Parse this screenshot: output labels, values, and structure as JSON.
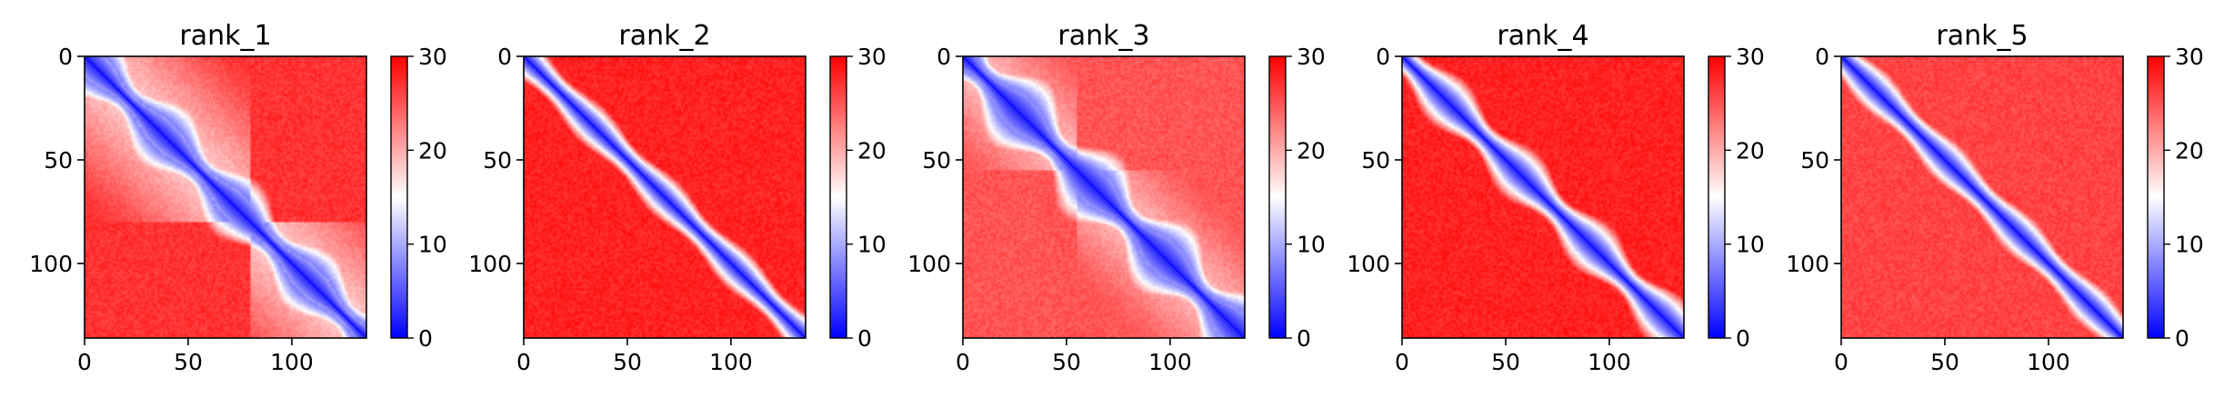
{
  "chart_data": [
    {
      "type": "heatmap",
      "title": "rank_1",
      "matrix_size": 136,
      "x_ticks": [
        0,
        50,
        100
      ],
      "y_ticks": [
        0,
        50,
        100
      ],
      "colorbar": {
        "min": 0,
        "max": 30,
        "ticks": [
          0,
          10,
          20,
          30
        ],
        "colormap": "bwr"
      },
      "pattern": {
        "diag_width": 7,
        "diag_wobble": 3,
        "blocks": [
          [
            0,
            80
          ],
          [
            80,
            136
          ]
        ],
        "block_value": 16,
        "background": 27
      }
    },
    {
      "type": "heatmap",
      "title": "rank_2",
      "matrix_size": 136,
      "x_ticks": [
        0,
        50,
        100
      ],
      "y_ticks": [
        0,
        50,
        100
      ],
      "colorbar": {
        "min": 0,
        "max": 30,
        "ticks": [
          0,
          10,
          20,
          30
        ],
        "colormap": "bwr"
      },
      "pattern": {
        "diag_width": 5,
        "diag_wobble": 1,
        "blocks": [],
        "block_value": 16,
        "background": 28
      }
    },
    {
      "type": "heatmap",
      "title": "rank_3",
      "matrix_size": 136,
      "x_ticks": [
        0,
        50,
        100
      ],
      "y_ticks": [
        0,
        50,
        100
      ],
      "colorbar": {
        "min": 0,
        "max": 30,
        "ticks": [
          0,
          10,
          20,
          30
        ],
        "colormap": "bwr"
      },
      "pattern": {
        "diag_width": 8,
        "diag_wobble": 4,
        "blocks": [
          [
            0,
            55
          ],
          [
            55,
            136
          ]
        ],
        "block_value": 17,
        "background": 25
      }
    },
    {
      "type": "heatmap",
      "title": "rank_4",
      "matrix_size": 136,
      "x_ticks": [
        0,
        50,
        100
      ],
      "y_ticks": [
        0,
        50,
        100
      ],
      "colorbar": {
        "min": 0,
        "max": 30,
        "ticks": [
          0,
          10,
          20,
          30
        ],
        "colormap": "bwr"
      },
      "pattern": {
        "diag_width": 6,
        "diag_wobble": 2,
        "blocks": [],
        "block_value": 17,
        "background": 28
      }
    },
    {
      "type": "heatmap",
      "title": "rank_5",
      "matrix_size": 136,
      "x_ticks": [
        0,
        50,
        100
      ],
      "y_ticks": [
        0,
        50,
        100
      ],
      "colorbar": {
        "min": 0,
        "max": 30,
        "ticks": [
          0,
          10,
          20,
          30
        ],
        "colormap": "bwr"
      },
      "pattern": {
        "diag_width": 5,
        "diag_wobble": 1,
        "blocks": [],
        "block_value": 18,
        "background": 26
      }
    }
  ]
}
